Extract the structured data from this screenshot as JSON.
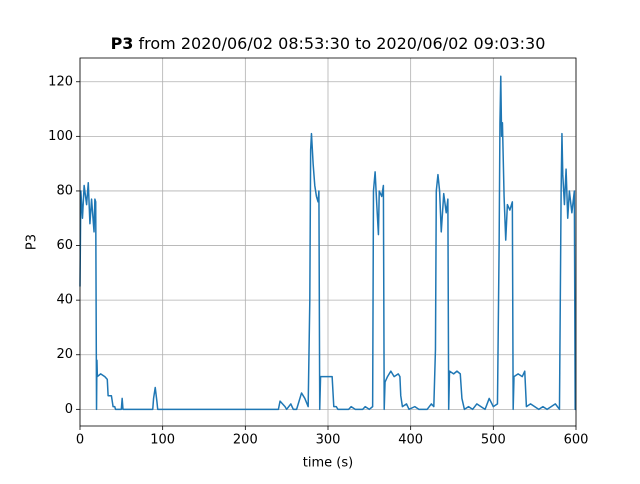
{
  "chart_data": {
    "type": "line",
    "title_bold": "P3",
    "title": "from 2020/06/02 08:53:30 to 2020/06/02 09:03:30",
    "xlabel": "time (s)",
    "ylabel": "P3",
    "xlim": [
      0,
      600
    ],
    "ylim": [
      -6.1,
      128.7
    ],
    "xticks": [
      0,
      100,
      200,
      300,
      400,
      500,
      600
    ],
    "yticks": [
      0,
      20,
      40,
      60,
      80,
      100,
      120
    ],
    "grid": true,
    "series": [
      {
        "color": "#1f77b4",
        "x": [
          0,
          1,
          3,
          5,
          8,
          10,
          12,
          14,
          17,
          18,
          19,
          20,
          20.5,
          21,
          25,
          30,
          33,
          34,
          38,
          40,
          42,
          43,
          50,
          51,
          52,
          60,
          88,
          89,
          91,
          93,
          94,
          240,
          242,
          245,
          248,
          250,
          255,
          258,
          262,
          268,
          272,
          276,
          278,
          279,
          280,
          282,
          284,
          286,
          288,
          289,
          290,
          291,
          300,
          305,
          307,
          310,
          312,
          325,
          328,
          333,
          342,
          345,
          350,
          354,
          355,
          357,
          359,
          361,
          362,
          365,
          367,
          368,
          369,
          372,
          376,
          380,
          385,
          387,
          388,
          390,
          395,
          398,
          405,
          410,
          420,
          425,
          428,
          430,
          431,
          433,
          435,
          437,
          440,
          443,
          445,
          446,
          447,
          452,
          456,
          460,
          462,
          465,
          470,
          475,
          480,
          485,
          490,
          495,
          500,
          505,
          507,
          508,
          509,
          510,
          511,
          513,
          515,
          517,
          520,
          523,
          524,
          525,
          530,
          535,
          538,
          540,
          545,
          550,
          555,
          560,
          565,
          570,
          575,
          580,
          582,
          583,
          584,
          586,
          588,
          590,
          592,
          595,
          598,
          599,
          600
        ],
        "values": [
          45,
          80,
          70,
          82,
          75,
          83,
          68,
          77,
          65,
          77,
          76,
          0,
          18,
          12,
          13,
          12,
          11,
          5,
          5,
          1,
          1,
          0,
          0,
          4,
          0,
          0,
          0,
          4,
          8,
          3,
          0,
          0,
          3,
          2,
          1,
          0,
          2,
          0,
          0,
          6,
          4,
          1,
          40,
          95,
          101,
          90,
          82,
          78,
          76,
          80,
          0,
          12,
          12,
          12,
          1,
          1,
          0,
          0,
          1,
          0,
          0,
          1,
          0,
          1,
          80,
          87,
          75,
          64,
          80,
          78,
          82,
          0,
          10,
          12,
          14,
          12,
          13,
          12,
          5,
          1,
          2,
          0,
          1,
          0,
          0,
          2,
          1,
          22,
          80,
          86,
          80,
          65,
          79,
          72,
          77,
          0,
          14,
          13,
          14,
          13,
          4,
          0,
          1,
          0,
          2,
          1,
          0,
          4,
          1,
          2,
          60,
          105,
          122,
          100,
          105,
          78,
          62,
          75,
          73,
          76,
          0,
          12,
          13,
          12,
          14,
          1,
          2,
          1,
          0,
          1,
          0,
          1,
          2,
          0,
          80,
          101,
          86,
          75,
          88,
          70,
          80,
          72,
          80,
          0,
          0
        ]
      }
    ]
  }
}
